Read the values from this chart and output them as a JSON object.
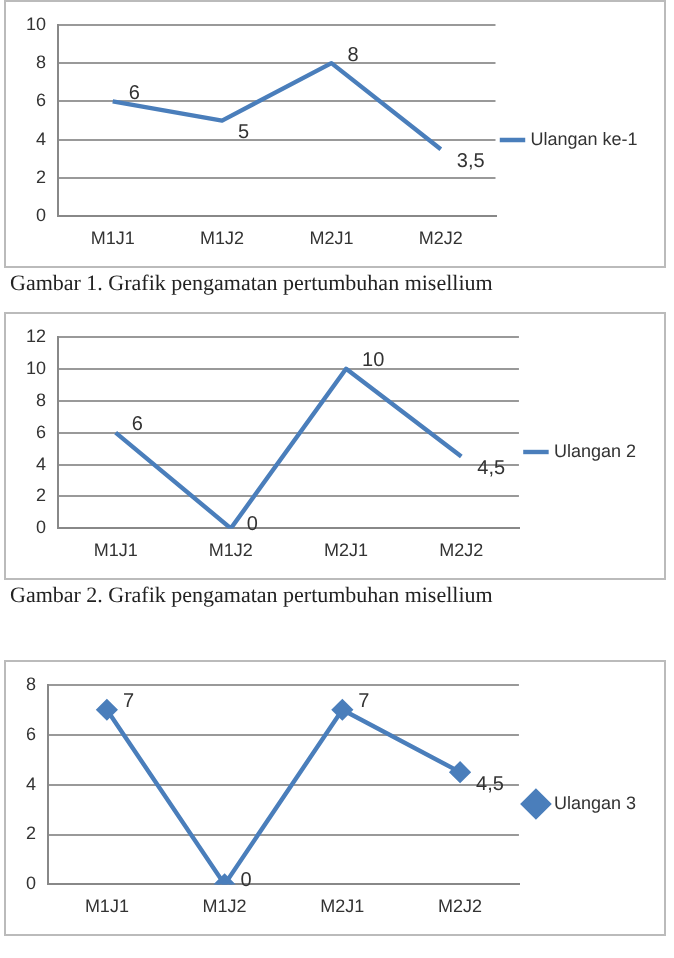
{
  "chart_data": [
    {
      "type": "line",
      "categories": [
        "M1J1",
        "M1J2",
        "M2J1",
        "M2J2"
      ],
      "series": [
        {
          "name": "Ulangan ke-1",
          "color": "#4a7ebb",
          "values": [
            6,
            5,
            8,
            3.5
          ],
          "value_labels": [
            "6",
            "5",
            "8",
            "3,5"
          ]
        }
      ],
      "ylim": [
        0,
        10
      ],
      "yticks": [
        0,
        2,
        4,
        6,
        8,
        10
      ],
      "grid": "y",
      "legend": "right",
      "marker": "none",
      "annotations": [
        "Gambar 1. Grafik pengamatan pertumbuhan misellium"
      ]
    },
    {
      "type": "line",
      "categories": [
        "M1J1",
        "M1J2",
        "M2J1",
        "M2J2"
      ],
      "series": [
        {
          "name": "Ulangan 2",
          "color": "#4a7ebb",
          "values": [
            6,
            0,
            10,
            4.5
          ],
          "value_labels": [
            "6",
            "0",
            "10",
            "4,5"
          ]
        }
      ],
      "ylim": [
        0,
        12
      ],
      "yticks": [
        0,
        2,
        4,
        6,
        8,
        10,
        12
      ],
      "grid": "y",
      "legend": "right",
      "marker": "none",
      "annotations": [
        "Gambar 2.  Grafik pengamatan pertumbuhan misellium"
      ]
    },
    {
      "type": "line",
      "categories": [
        "M1J1",
        "M1J2",
        "M2J1",
        "M2J2"
      ],
      "series": [
        {
          "name": "Ulangan 3",
          "color": "#4a7ebb",
          "values": [
            7,
            0,
            7,
            4.5
          ],
          "value_labels": [
            "7",
            "0",
            "7",
            "4,5"
          ]
        }
      ],
      "ylim": [
        0,
        8
      ],
      "yticks": [
        0,
        2,
        4,
        6,
        8
      ],
      "grid": "y",
      "legend": "right",
      "marker": "diamond"
    }
  ]
}
